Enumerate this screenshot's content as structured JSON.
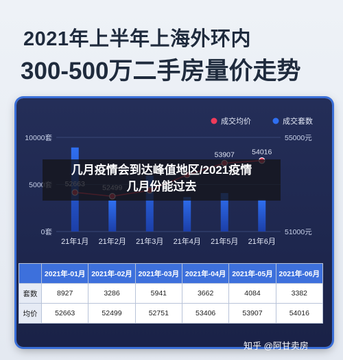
{
  "header": {
    "line1": "2021年上半年上海外环内",
    "line2": "300-500万二手房量价走势"
  },
  "overlay": {
    "line1": "几月疫情会到达峰值地区/2021疫情",
    "line2": "几月份能过去"
  },
  "watermark": "知乎 @阿甘卖房",
  "colors": {
    "bar": "#2f6ff0",
    "line": "#ef3b5a",
    "table_header": "#3d70dc"
  },
  "chart_data": {
    "type": "bar",
    "categories": [
      "21年1月",
      "21年2月",
      "21年3月",
      "21年4月",
      "21年5月",
      "21年6月"
    ],
    "legend": [
      "成交均价",
      "成交套数"
    ],
    "left_axis": {
      "ticks": [
        "10000套",
        "5000套",
        "0套"
      ],
      "ylim": [
        0,
        10000
      ]
    },
    "right_axis": {
      "ticks": [
        "55000元",
        "51000元"
      ],
      "ylim": [
        51000,
        55000
      ]
    },
    "series": [
      {
        "name": "成交套数",
        "kind": "bar",
        "axis": "left",
        "values": [
          8927,
          3286,
          5941,
          3662,
          4084,
          3382
        ]
      },
      {
        "name": "成交均价",
        "kind": "line",
        "axis": "right",
        "values": [
          52663,
          52499,
          52751,
          53406,
          53907,
          54016
        ]
      }
    ],
    "data_labels": [
      "52663",
      "52499",
      "",
      "",
      "53907",
      "54016"
    ]
  },
  "table": {
    "headers": [
      "2021年-01月",
      "2021年-02月",
      "2021年-03月",
      "2021年-04月",
      "2021年-05月",
      "2021年-06月"
    ],
    "rows": [
      {
        "label": "套数",
        "values": [
          "8927",
          "3286",
          "5941",
          "3662",
          "4084",
          "3382"
        ]
      },
      {
        "label": "均价",
        "values": [
          "52663",
          "52499",
          "52751",
          "53406",
          "53907",
          "54016"
        ]
      }
    ]
  }
}
